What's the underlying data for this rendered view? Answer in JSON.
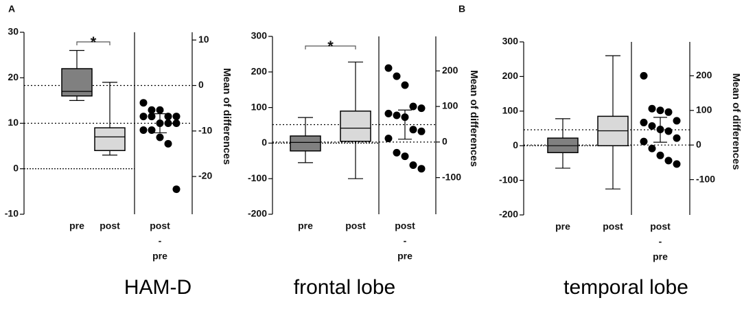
{
  "chart_data": [
    {
      "type": "estimation",
      "panel": "A",
      "title": "HAM-D",
      "y2_label": "Mean of differences",
      "categories": [
        "pre",
        "post"
      ],
      "difference_label": [
        "post",
        "-",
        "pre"
      ],
      "ylim": [
        -10,
        30
      ],
      "yticks": [
        -10,
        0,
        10,
        20,
        30
      ],
      "y2lim": [
        -28.3,
        11.7
      ],
      "y2ticks": [
        -20,
        -10,
        0,
        10
      ],
      "boxes": [
        {
          "color": "#808080",
          "whisker_low": 15,
          "q1": 16,
          "median": 17,
          "q3": 22,
          "whisker_high": 26
        },
        {
          "color": "#d9d9d9",
          "whisker_low": 3,
          "q1": 4,
          "median": 7,
          "q3": 9,
          "whisker_high": 19
        }
      ],
      "annotation": "*",
      "differences": [
        -3.8,
        -5.4,
        -5.4,
        -6.8,
        -6.8,
        -6.8,
        -6.8,
        -8.3,
        -8.3,
        -8.3,
        -9.8,
        -9.8,
        -11.4,
        -12.8,
        -22.8
      ],
      "mean_difference": -8.3,
      "mean_difference_ci": [
        -6.2,
        -10.4
      ],
      "zero_line": true
    },
    {
      "type": "estimation",
      "title": "frontal lobe",
      "y2_label": "Mean of differences",
      "categories": [
        "pre",
        "post"
      ],
      "difference_label": [
        "post",
        "-",
        "pre"
      ],
      "ylim": [
        -200,
        300
      ],
      "yticks": [
        -200,
        -100,
        0,
        100,
        200,
        300
      ],
      "y2lim": [
        -203,
        297
      ],
      "y2ticks": [
        -100,
        0,
        100,
        200
      ],
      "boxes": [
        {
          "color": "#808080",
          "whisker_low": -55,
          "q1": -22,
          "median": 2,
          "q3": 20,
          "whisker_high": 72
        },
        {
          "color": "#d9d9d9",
          "whisker_low": -100,
          "q1": 5,
          "median": 42,
          "q3": 90,
          "whisker_high": 228
        }
      ],
      "annotation": "*",
      "differences": [
        208,
        185,
        160,
        100,
        95,
        80,
        75,
        70,
        35,
        30,
        10,
        -30,
        -40,
        -65,
        -75
      ],
      "mean_difference": 49,
      "mean_difference_ci": [
        90,
        8
      ],
      "zero_line": true
    },
    {
      "type": "estimation",
      "panel": "B",
      "title": "temporal lobe",
      "y2_label": "Mean of differences",
      "categories": [
        "pre",
        "post"
      ],
      "difference_label": [
        "post",
        "-",
        "pre"
      ],
      "ylim": [
        -200,
        300
      ],
      "yticks": [
        -200,
        -100,
        0,
        100,
        200,
        300
      ],
      "y2lim": [
        -202,
        298
      ],
      "y2ticks": [
        -100,
        0,
        100,
        200
      ],
      "boxes": [
        {
          "color": "#808080",
          "whisker_low": -65,
          "q1": -20,
          "median": 0,
          "q3": 22,
          "whisker_high": 78
        },
        {
          "color": "#d9d9d9",
          "whisker_low": -125,
          "q1": 0,
          "median": 43,
          "q3": 85,
          "whisker_high": 260
        }
      ],
      "differences": [
        200,
        105,
        100,
        95,
        70,
        65,
        55,
        45,
        40,
        20,
        10,
        -10,
        -30,
        -45,
        -55
      ],
      "mean_difference": 44,
      "mean_difference_ci": [
        80,
        8
      ],
      "zero_line": true
    }
  ]
}
